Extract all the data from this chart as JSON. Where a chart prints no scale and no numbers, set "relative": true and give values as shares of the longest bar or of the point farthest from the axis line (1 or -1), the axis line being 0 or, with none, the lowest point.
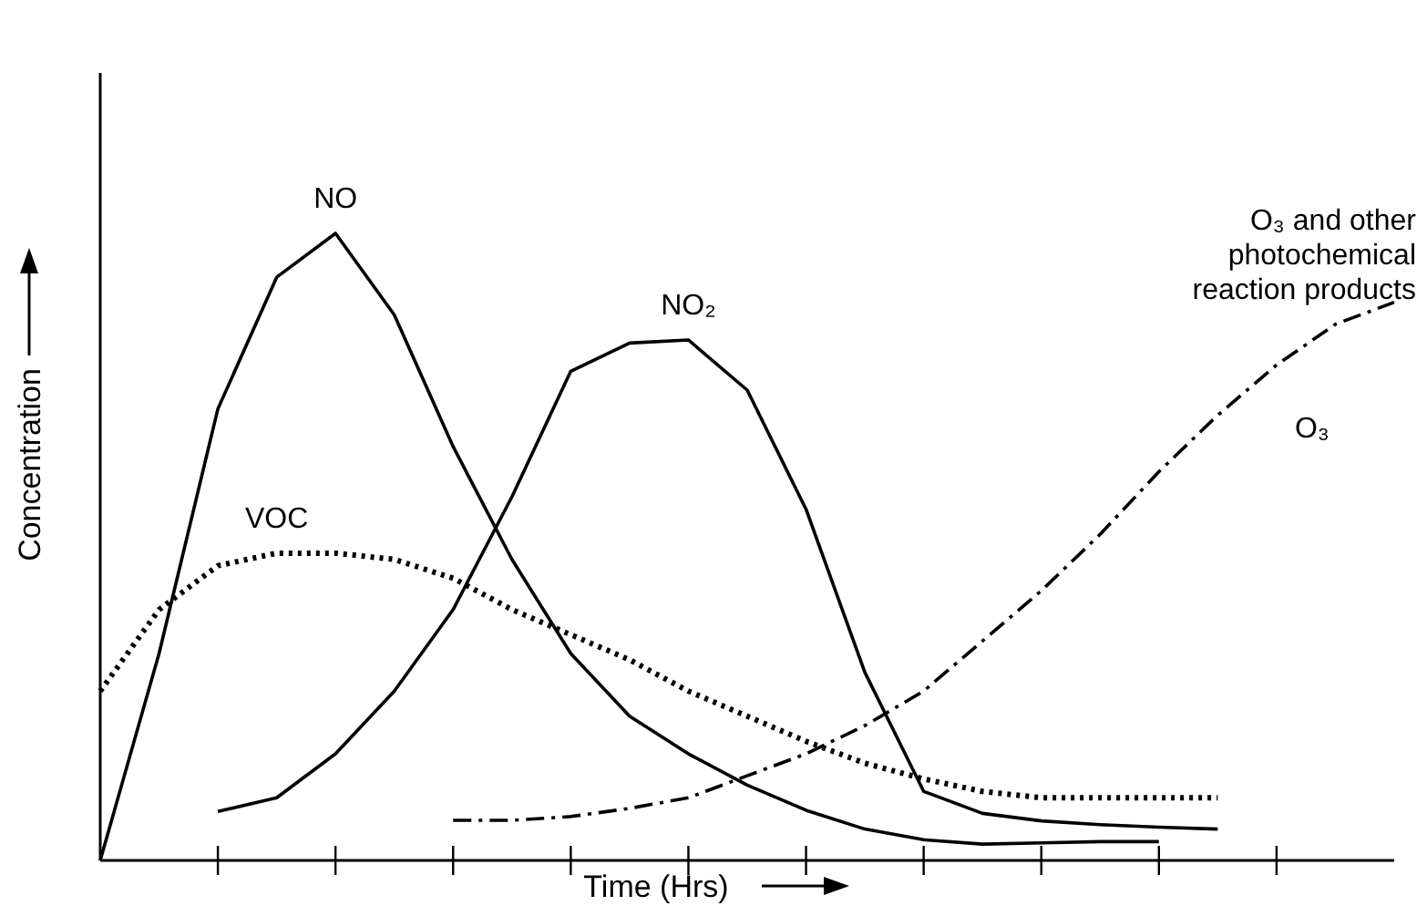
{
  "chart_data": {
    "type": "line",
    "relative": true,
    "xlabel": "Time (Hrs)",
    "ylabel": "Concentration",
    "marker": "none",
    "categories": [
      null,
      null,
      null,
      null,
      null,
      null,
      null,
      null,
      null,
      null,
      null,
      null,
      null,
      null,
      null,
      null,
      null,
      null,
      null,
      null,
      null,
      null,
      null
    ],
    "annotations": [
      "O₃ and other photochemical reaction products"
    ],
    "series": [
      {
        "name": "NO",
        "color": "#000000",
        "line_style": "solid",
        "values": [
          0,
          0.33,
          0.72,
          0.93,
          1,
          0.87,
          0.66,
          0.48,
          0.33,
          0.23,
          0.17,
          0.12,
          0.08,
          0.05,
          0.033,
          0.026,
          0.028,
          0.03,
          0.03,
          null,
          null,
          null,
          null
        ]
      },
      {
        "name": "NO₂",
        "color": "#000000",
        "line_style": "solid",
        "values": [
          null,
          null,
          0.078,
          0.1,
          0.17,
          0.27,
          0.4,
          0.58,
          0.78,
          0.825,
          0.83,
          0.75,
          0.56,
          0.3,
          0.11,
          0.075,
          0.063,
          0.057,
          0.053,
          0.05,
          null,
          null,
          null
        ]
      },
      {
        "name": "VOC",
        "color": "#000000",
        "line_style": "dotted",
        "values": [
          0.27,
          0.4,
          0.47,
          0.49,
          0.49,
          0.48,
          0.45,
          0.4,
          0.36,
          0.32,
          0.27,
          0.23,
          0.19,
          0.155,
          0.13,
          0.11,
          0.1,
          0.1,
          0.1,
          0.1,
          null,
          null,
          null
        ]
      },
      {
        "name": "O₃",
        "color": "#000000",
        "line_style": "dashdot",
        "values": [
          null,
          null,
          null,
          null,
          null,
          null,
          0.064,
          0.064,
          0.07,
          0.083,
          0.1,
          0.135,
          0.17,
          0.215,
          0.27,
          0.35,
          0.43,
          0.52,
          0.62,
          0.71,
          0.79,
          0.855,
          0.89
        ]
      }
    ]
  }
}
